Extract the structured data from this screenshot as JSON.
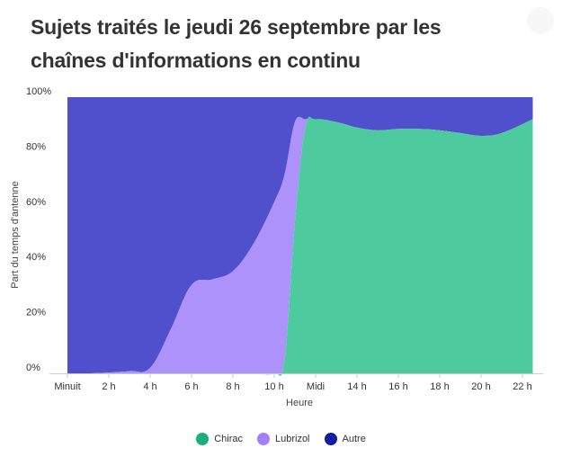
{
  "title": "Sujets traités le jeudi 26 septembre par les chaînes d'informations en continu",
  "chart_data": {
    "type": "area",
    "stacked": true,
    "title": "Sujets traités le jeudi 26 septembre par les chaînes d'informations en continu",
    "xlabel": "Heure",
    "ylabel": "Part du temps d'antenne",
    "xlim": [
      0,
      23
    ],
    "ylim": [
      0,
      100
    ],
    "x_ticks": [
      {
        "x": 0,
        "label": "Minuit"
      },
      {
        "x": 2,
        "label": "2 h"
      },
      {
        "x": 4,
        "label": "4 h"
      },
      {
        "x": 6,
        "label": "6 h"
      },
      {
        "x": 8,
        "label": "8 h"
      },
      {
        "x": 10,
        "label": "10 h"
      },
      {
        "x": 12,
        "label": "Midi"
      },
      {
        "x": 14,
        "label": "14 h"
      },
      {
        "x": 16,
        "label": "16 h"
      },
      {
        "x": 18,
        "label": "18 h"
      },
      {
        "x": 20,
        "label": "20 h"
      },
      {
        "x": 22,
        "label": "22 h"
      }
    ],
    "y_ticks": [
      {
        "y": 0,
        "label": "0%"
      },
      {
        "y": 20,
        "label": "20%"
      },
      {
        "y": 40,
        "label": "40%"
      },
      {
        "y": 60,
        "label": "60%"
      },
      {
        "y": 80,
        "label": "80%"
      },
      {
        "y": 100,
        "label": "100%"
      }
    ],
    "x": [
      0,
      1,
      2,
      3,
      4,
      5,
      6,
      7,
      8,
      9,
      10,
      10.5,
      11,
      11.5,
      12,
      13,
      14,
      15,
      16,
      17,
      18,
      19,
      20,
      21,
      22.5
    ],
    "series": [
      {
        "name": "Chirac",
        "color": "#4ecb9e",
        "values": [
          0,
          0,
          0,
          0,
          0,
          0,
          0,
          0,
          0,
          0,
          0,
          5,
          55,
          89,
          92,
          91,
          89,
          88,
          88.5,
          88.5,
          88,
          87,
          86,
          87,
          92
        ]
      },
      {
        "name": "Lubrizol",
        "color": "#ae92fc",
        "values": [
          0,
          0,
          0.3,
          0.8,
          2,
          16,
          32,
          34,
          37,
          47,
          62,
          67,
          36,
          3,
          0,
          0,
          0,
          0,
          0,
          0,
          0,
          0,
          0,
          0,
          0
        ]
      },
      {
        "name": "Autre",
        "color": "#5050cc",
        "values": [
          100,
          100,
          99.7,
          99.2,
          98,
          84,
          68,
          66,
          63,
          53,
          38,
          28,
          9,
          8,
          8,
          9,
          11,
          12,
          11.5,
          11.5,
          12,
          13,
          14,
          13,
          8
        ]
      }
    ],
    "legend": {
      "position": "bottom",
      "entries": [
        {
          "label": "Chirac",
          "color": "#1bae76"
        },
        {
          "label": "Lubrizol",
          "color": "#a47ffb"
        },
        {
          "label": "Autre",
          "color": "#101ea0"
        }
      ]
    },
    "grid": false
  }
}
